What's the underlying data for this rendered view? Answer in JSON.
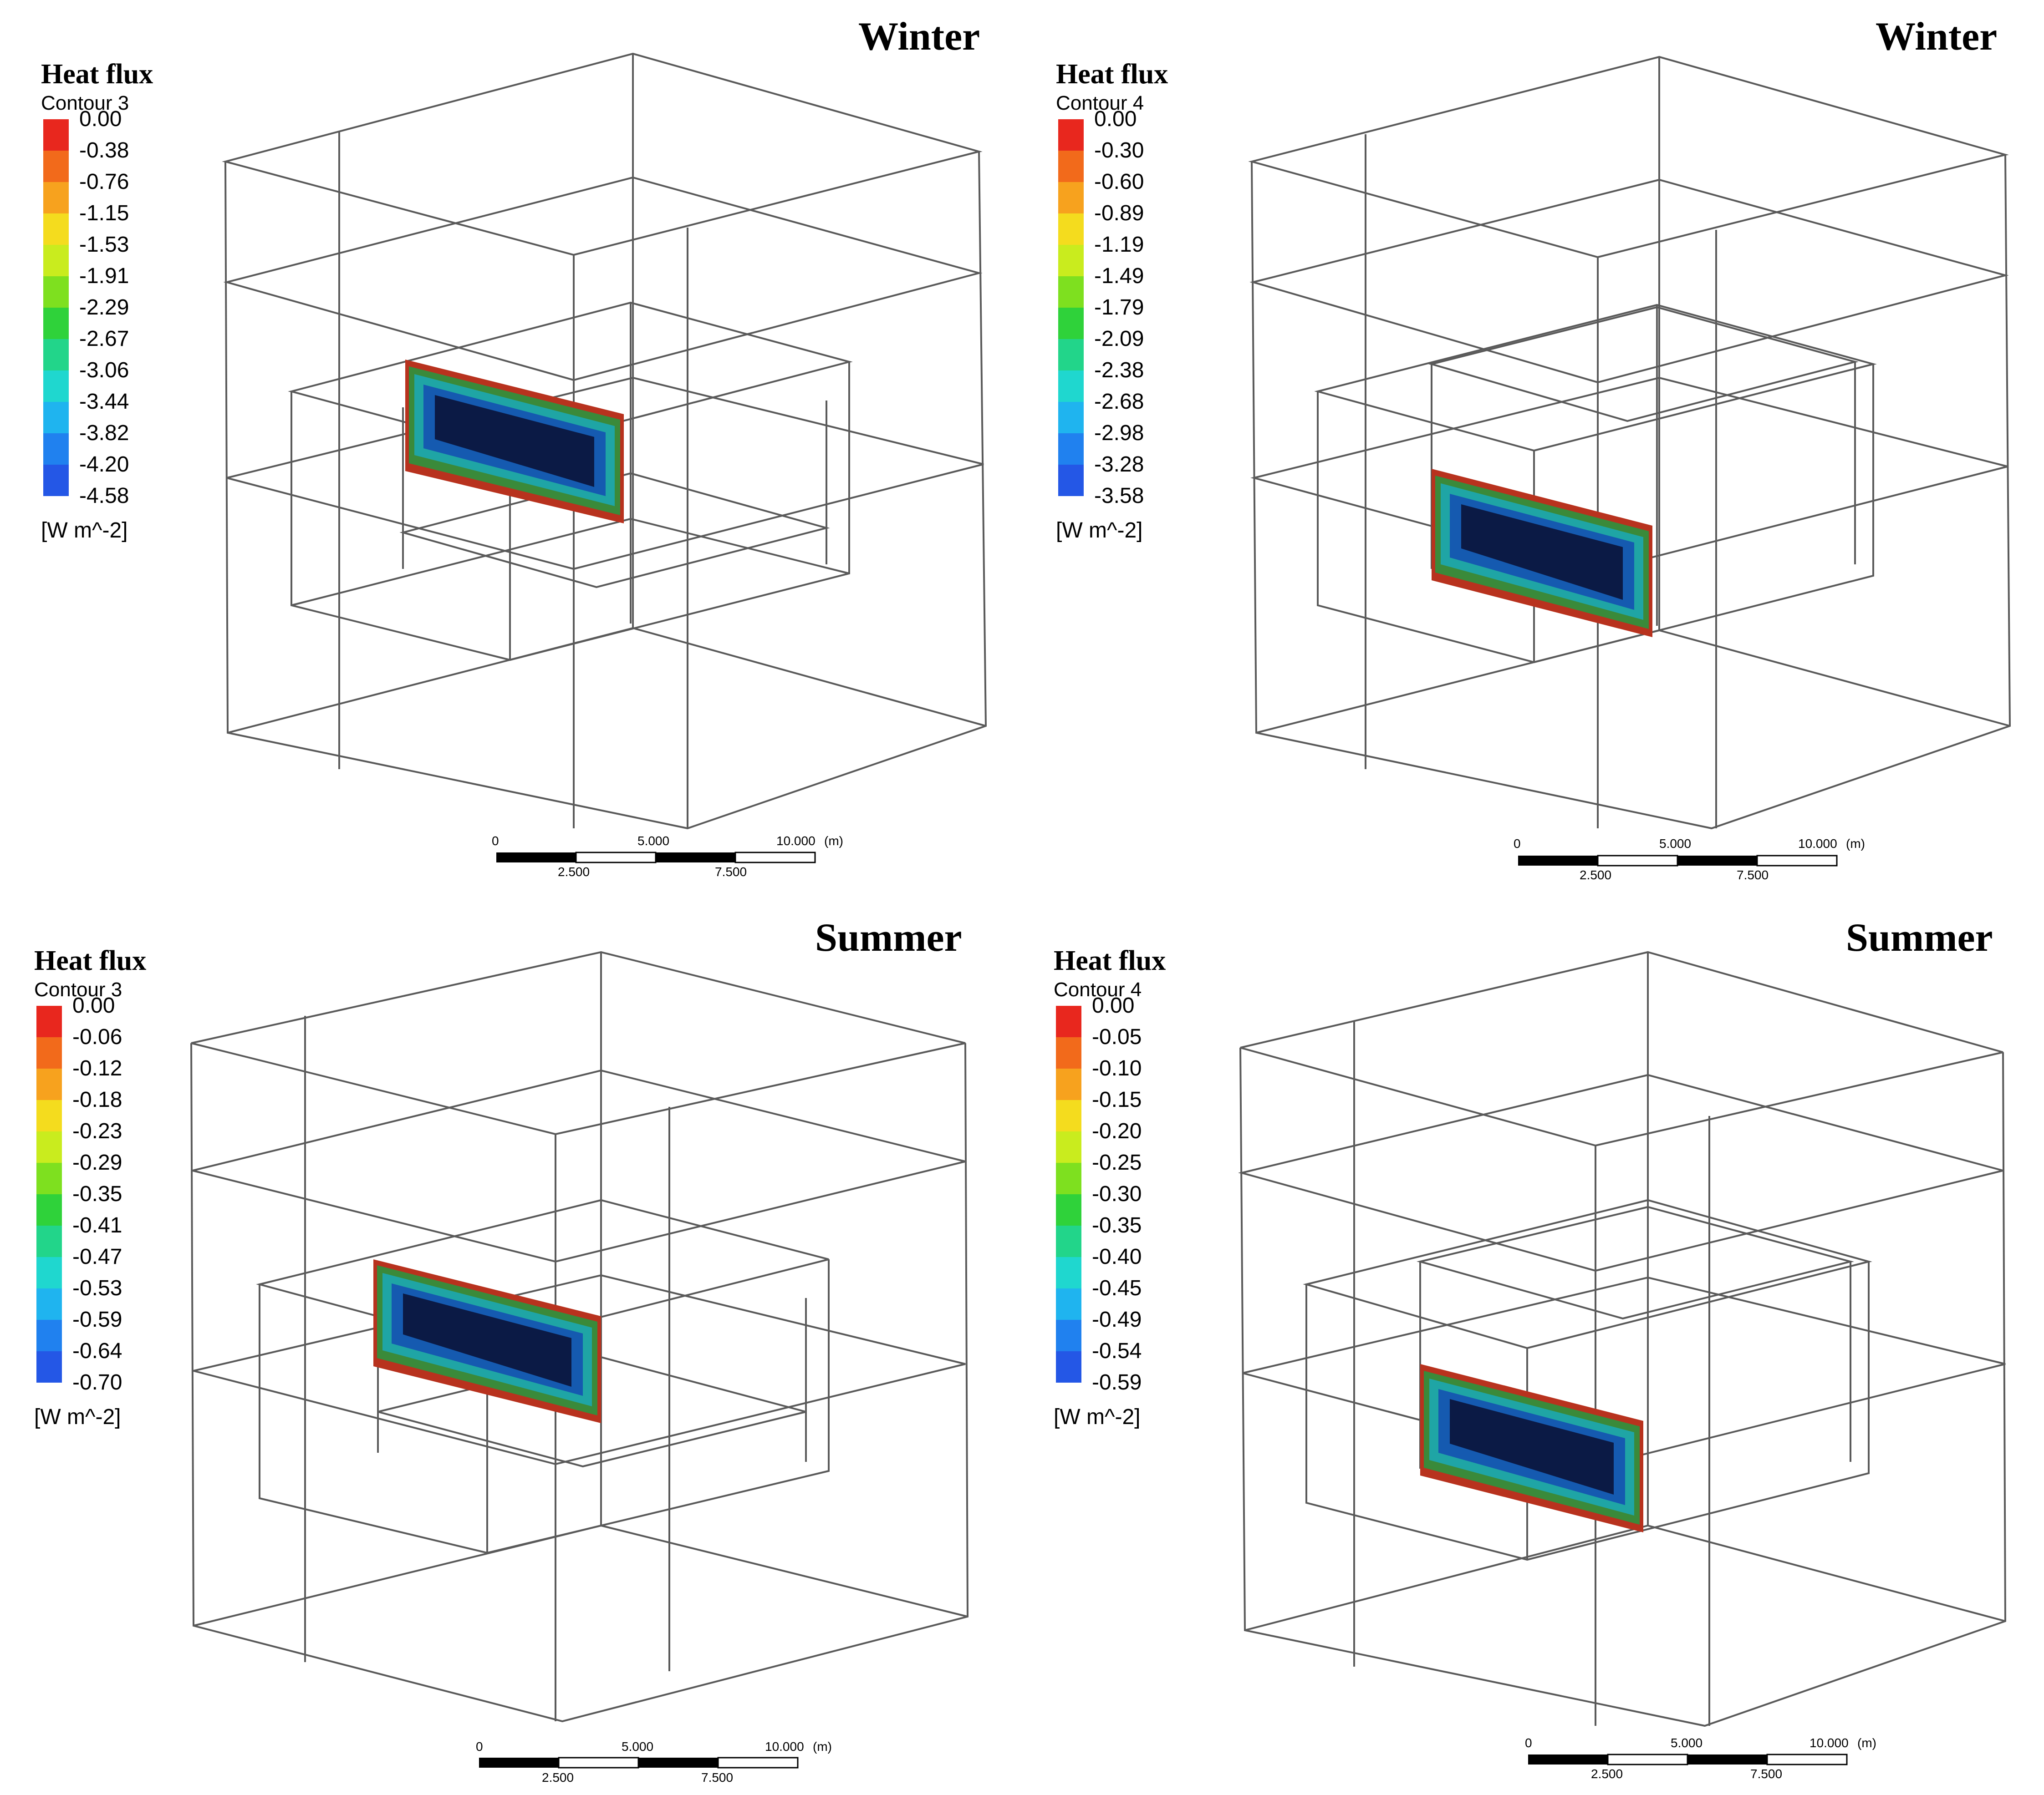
{
  "panels": [
    {
      "season": "Winter",
      "legend": {
        "title": "Heat flux",
        "contour": "Contour 3",
        "ticks": [
          "0.00",
          "-0.38",
          "-0.76",
          "-1.15",
          "-1.53",
          "-1.91",
          "-2.29",
          "-2.67",
          "-3.06",
          "-3.44",
          "-3.82",
          "-4.20",
          "-4.58"
        ],
        "unit": "[W m^-2]"
      },
      "scale": {
        "labels_top": [
          "0",
          "5.000",
          "10.000",
          "(m)"
        ],
        "labels_bottom": [
          "2.500",
          "7.500"
        ]
      }
    },
    {
      "season": "Winter",
      "legend": {
        "title": "Heat flux",
        "contour": "Contour 4",
        "ticks": [
          "0.00",
          "-0.30",
          "-0.60",
          "-0.89",
          "-1.19",
          "-1.49",
          "-1.79",
          "-2.09",
          "-2.38",
          "-2.68",
          "-2.98",
          "-3.28",
          "-3.58"
        ],
        "unit": "[W m^-2]"
      },
      "scale": {
        "labels_top": [
          "0",
          "5.000",
          "10.000",
          "(m)"
        ],
        "labels_bottom": [
          "2.500",
          "7.500"
        ]
      }
    },
    {
      "season": "Summer",
      "legend": {
        "title": "Heat flux",
        "contour": "Contour 3",
        "ticks": [
          "0.00",
          "-0.06",
          "-0.12",
          "-0.18",
          "-0.23",
          "-0.29",
          "-0.35",
          "-0.41",
          "-0.47",
          "-0.53",
          "-0.59",
          "-0.64",
          "-0.70"
        ],
        "unit": "[W m^-2]"
      },
      "scale": {
        "labels_top": [
          "0",
          "5.000",
          "10.000",
          "(m)"
        ],
        "labels_bottom": [
          "2.500",
          "7.500"
        ]
      }
    },
    {
      "season": "Summer",
      "legend": {
        "title": "Heat flux",
        "contour": "Contour 4",
        "ticks": [
          "0.00",
          "-0.05",
          "-0.10",
          "-0.15",
          "-0.20",
          "-0.25",
          "-0.30",
          "-0.35",
          "-0.40",
          "-0.45",
          "-0.49",
          "-0.54",
          "-0.59"
        ],
        "unit": "[W m^-2]"
      },
      "scale": {
        "labels_top": [
          "0",
          "5.000",
          "10.000",
          "(m)"
        ],
        "labels_bottom": [
          "2.500",
          "7.500"
        ]
      }
    }
  ],
  "colors": {
    "colormap": [
      "#e8271e",
      "#f26a1b",
      "#f7a21e",
      "#f4dc1e",
      "#c9ec1e",
      "#7ee01f",
      "#2fd23a",
      "#22d58a",
      "#1fd7cf",
      "#1fb4ef",
      "#2081ef",
      "#2457e6"
    ],
    "wireframe": "#5a5a5a",
    "surface_dark": "#0b1a45",
    "surface_edge": "#b8321e"
  }
}
